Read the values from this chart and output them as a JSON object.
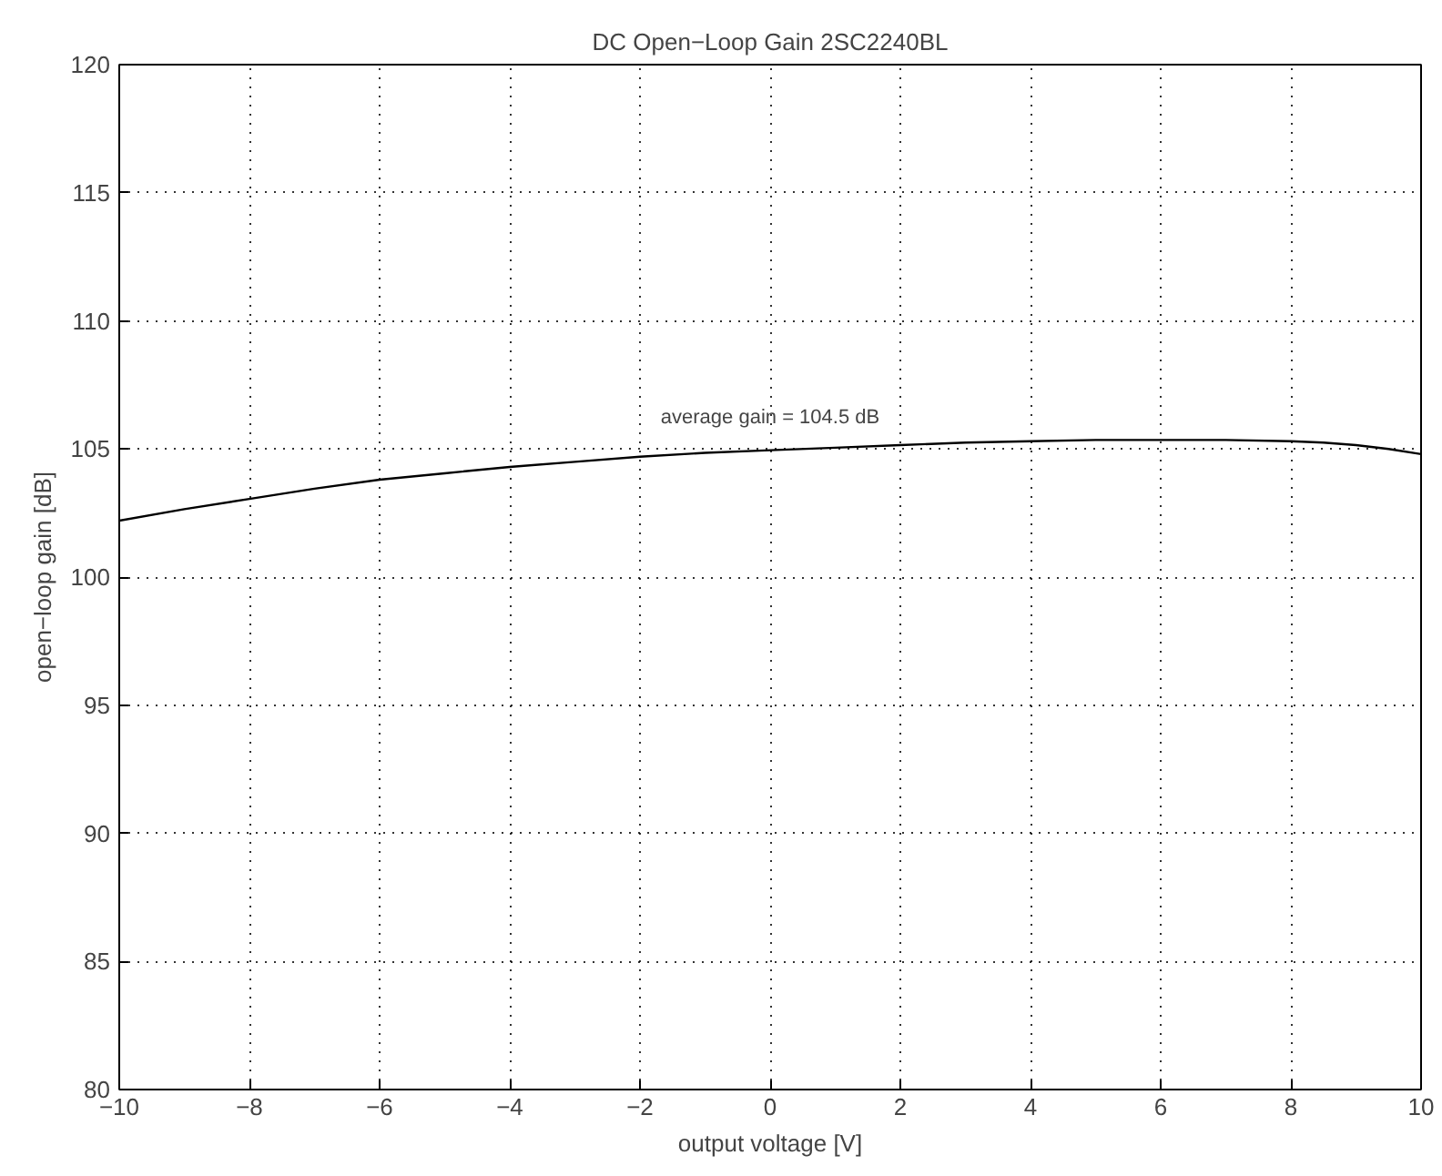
{
  "chart_data": {
    "type": "line",
    "title": "DC Open−Loop Gain 2SC2240BL",
    "xlabel": "output voltage [V]",
    "ylabel": "open−loop gain [dB]",
    "x": [
      -10,
      -9,
      -8,
      -7,
      -6,
      -5,
      -4,
      -3,
      -2,
      -1,
      0,
      1,
      2,
      3,
      4,
      5,
      6,
      7,
      8,
      8.5,
      9,
      9.5,
      10
    ],
    "series": [
      {
        "color": "#000000",
        "values": [
          102.2,
          102.65,
          103.05,
          103.45,
          103.8,
          104.05,
          104.3,
          104.5,
          104.7,
          104.85,
          104.95,
          105.05,
          105.15,
          105.25,
          105.3,
          105.35,
          105.35,
          105.35,
          105.3,
          105.25,
          105.15,
          105.0,
          104.8
        ]
      }
    ],
    "annotations": [
      "average gain = 104.5 dB"
    ],
    "xlim": [
      -10,
      10
    ],
    "ylim": [
      80,
      120
    ],
    "xticks": [
      {
        "value": -10,
        "label": "−10"
      },
      {
        "value": -8,
        "label": "−8"
      },
      {
        "value": -6,
        "label": "−6"
      },
      {
        "value": -4,
        "label": "−4"
      },
      {
        "value": -2,
        "label": "−2"
      },
      0,
      2,
      4,
      6,
      8,
      10
    ],
    "yticks": [
      80,
      85,
      90,
      95,
      100,
      105,
      110,
      115,
      120
    ],
    "grid": true,
    "marker": "none",
    "line_style": "solid"
  }
}
